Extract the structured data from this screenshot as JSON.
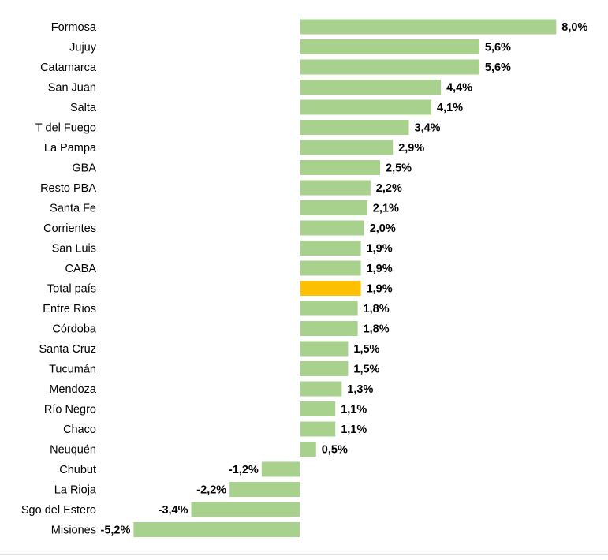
{
  "chart_data": {
    "type": "bar",
    "orientation": "horizontal",
    "title": "",
    "xlabel": "",
    "ylabel": "",
    "categories": [
      "Formosa",
      "Jujuy",
      "Catamarca",
      "San Juan",
      "Salta",
      "T del Fuego",
      "La Pampa",
      "GBA",
      "Resto PBA",
      "Santa Fe",
      "Corrientes",
      "San Luis",
      "CABA",
      "Total país",
      "Entre Rios",
      "Córdoba",
      "Santa Cruz",
      "Tucumán",
      "Mendoza",
      "Río Negro",
      "Chaco",
      "Neuquén",
      "Chubut",
      "La Rioja",
      "Sgo del Estero",
      "Misiones"
    ],
    "values": [
      8.0,
      5.6,
      5.6,
      4.4,
      4.1,
      3.4,
      2.9,
      2.5,
      2.2,
      2.1,
      2.0,
      1.9,
      1.9,
      1.9,
      1.8,
      1.8,
      1.5,
      1.5,
      1.3,
      1.1,
      1.1,
      0.5,
      -1.2,
      -2.2,
      -3.4,
      -5.2
    ],
    "value_labels": [
      "8,0%",
      "5,6%",
      "5,6%",
      "4,4%",
      "4,1%",
      "3,4%",
      "2,9%",
      "2,5%",
      "2,2%",
      "2,1%",
      "2,0%",
      "1,9%",
      "1,9%",
      "1,9%",
      "1,8%",
      "1,8%",
      "1,5%",
      "1,5%",
      "1,3%",
      "1,1%",
      "1,1%",
      "0,5%",
      "-1,2%",
      "-2,2%",
      "-3,4%",
      "-5,2%"
    ],
    "highlight_category": "Total país",
    "xlim": [
      -5.2,
      8.0
    ],
    "grid": false,
    "legend": "none",
    "colors": {
      "bar": "#a9d18e",
      "highlight": "#ffc000",
      "axis": "#bfbfbf",
      "frame": "#d9d9d9"
    }
  }
}
